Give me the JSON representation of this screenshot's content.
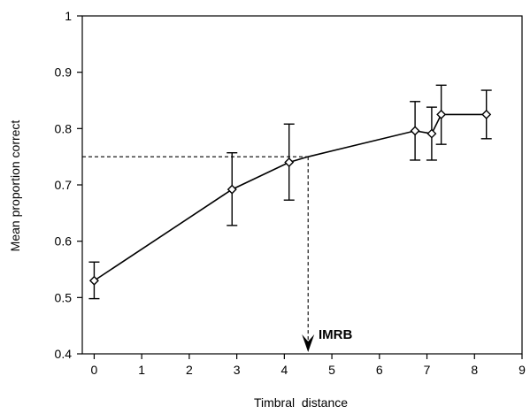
{
  "chart_data": {
    "type": "line",
    "title": "",
    "xlabel": "Timbral  distance",
    "ylabel": "Mean proportion correct",
    "xlim": [
      -0.25,
      9
    ],
    "ylim": [
      0.4,
      1.0
    ],
    "x_ticks": [
      0,
      1,
      2,
      3,
      4,
      5,
      6,
      7,
      8,
      9
    ],
    "x_tick_labels": [
      "0",
      "1",
      "2",
      "3",
      "4",
      "5",
      "6",
      "7",
      "8",
      "9"
    ],
    "y_ticks": [
      0.4,
      0.5,
      0.6,
      0.7,
      0.8,
      0.9,
      1.0
    ],
    "y_tick_labels": [
      "0.4",
      "0.5",
      "0.6",
      "0.7",
      "0.8",
      "0.9",
      "1"
    ],
    "grid": false,
    "legend": "none",
    "series": [
      {
        "x": [
          0,
          2.9,
          4.1,
          4.5,
          6.75,
          7.1,
          7.3,
          8.25
        ],
        "y": [
          0.53,
          0.692,
          0.74,
          0.75,
          0.796,
          0.791,
          0.825,
          0.825
        ],
        "markers": [
          true,
          true,
          true,
          false,
          true,
          true,
          true,
          true
        ],
        "error_low": [
          0.498,
          0.628,
          0.673,
          null,
          0.744,
          0.744,
          0.772,
          0.782
        ],
        "error_high": [
          0.563,
          0.757,
          0.808,
          null,
          0.848,
          0.838,
          0.877,
          0.868
        ],
        "color": "#000000"
      }
    ],
    "reference": {
      "threshold_y": 0.75,
      "threshold_x": 4.5,
      "label": "IMRB"
    }
  }
}
